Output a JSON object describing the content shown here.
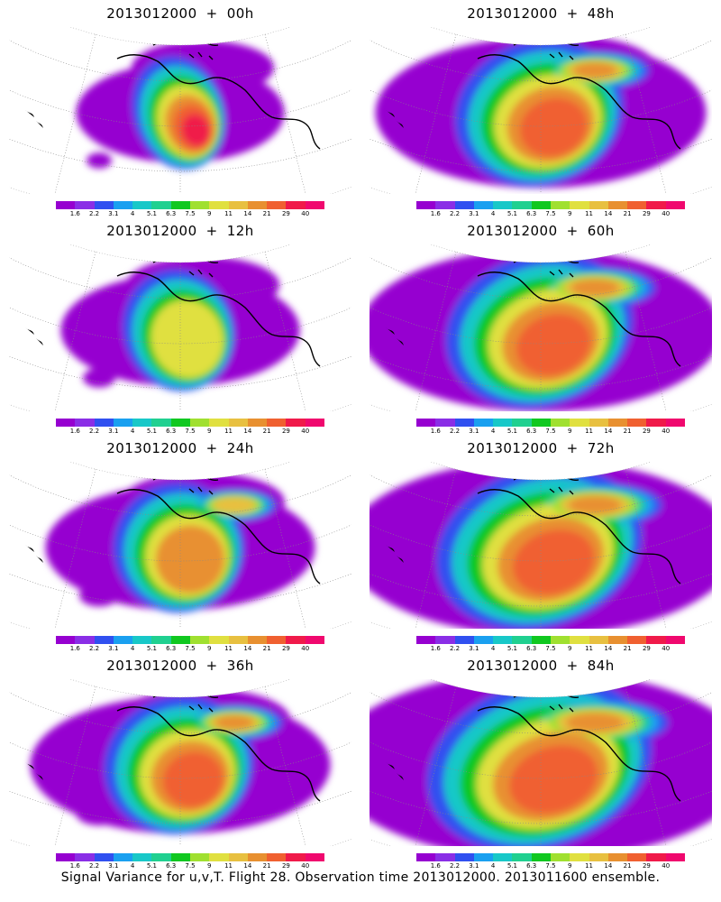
{
  "palette": [
    "#9600d0",
    "#8a2ee6",
    "#3050f0",
    "#1aa0f0",
    "#18c8c8",
    "#20d090",
    "#10c820",
    "#a0e030",
    "#e0e040",
    "#e8c040",
    "#e89030",
    "#f06030",
    "#f01a4a",
    "#f0086e"
  ],
  "legend_ticks": [
    "1.6",
    "2.2",
    "3.1",
    "4",
    "5.1",
    "6.3",
    "7.5",
    "9",
    "11",
    "14",
    "21",
    "29",
    "40"
  ],
  "panels": [
    {
      "id": "p00",
      "title": "2013012000",
      "sep": "+",
      "lead": "00h",
      "spread": 0.15,
      "peak": 12
    },
    {
      "id": "p48",
      "title": "2013012000",
      "sep": "+",
      "lead": "48h",
      "spread": 0.55,
      "peak": 11
    },
    {
      "id": "p12",
      "title": "2013012000",
      "sep": "+",
      "lead": "12h",
      "spread": 0.25,
      "peak": 9
    },
    {
      "id": "p60",
      "title": "2013012000",
      "sep": "+",
      "lead": "60h",
      "spread": 0.65,
      "peak": 11
    },
    {
      "id": "p24",
      "title": "2013012000",
      "sep": "+",
      "lead": "24h",
      "spread": 0.35,
      "peak": 10
    },
    {
      "id": "p72",
      "title": "2013012000",
      "sep": "+",
      "lead": "72h",
      "spread": 0.75,
      "peak": 11
    },
    {
      "id": "p36",
      "title": "2013012000",
      "sep": "+",
      "lead": "36h",
      "spread": 0.45,
      "peak": 11
    },
    {
      "id": "p84",
      "title": "2013012000",
      "sep": "+",
      "lead": "84h",
      "spread": 0.85,
      "peak": 11
    }
  ],
  "footer": "Signal Variance for u,v,T. Flight 28. Observation time 2013012000. 2013011600 ensemble."
}
